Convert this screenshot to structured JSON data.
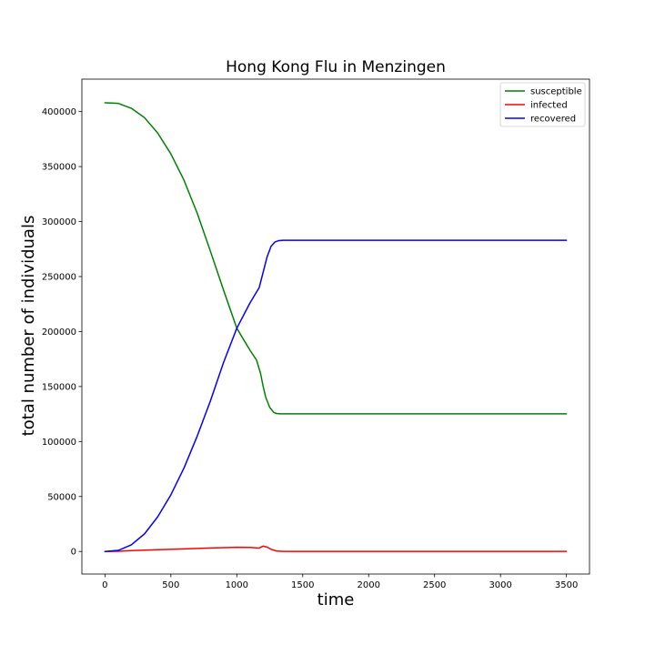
{
  "chart_data": {
    "type": "line",
    "title": "Hong Kong Flu in Menzingen",
    "xlabel": "time",
    "ylabel": "total number of individuals",
    "xlim": [
      -175,
      3675
    ],
    "ylim": [
      -20500,
      429500
    ],
    "xticks": [
      0,
      500,
      1000,
      1500,
      2000,
      2500,
      3000,
      3500
    ],
    "yticks": [
      0,
      50000,
      100000,
      150000,
      200000,
      250000,
      300000,
      350000,
      400000
    ],
    "grid": false,
    "legend_position": "top-right",
    "series": [
      {
        "name": "susceptible",
        "color": "#008000",
        "x": [
          0,
          100,
          200,
          300,
          400,
          500,
          600,
          700,
          800,
          900,
          1000,
          1100,
          1150,
          1180,
          1200,
          1220,
          1250,
          1280,
          1300,
          1330,
          1400,
          1600,
          2000,
          2500,
          3000,
          3500
        ],
        "y": [
          408000,
          407500,
          403000,
          394500,
          380500,
          361500,
          337500,
          307500,
          273000,
          237500,
          203000,
          183000,
          174000,
          162000,
          150000,
          140000,
          131000,
          126500,
          125500,
          125200,
          125200,
          125200,
          125200,
          125200,
          125200,
          125200
        ]
      },
      {
        "name": "infected",
        "color": "#ff0000",
        "x": [
          0,
          100,
          200,
          400,
          600,
          800,
          1000,
          1100,
          1170,
          1200,
          1230,
          1260,
          1300,
          1350,
          1500,
          2000,
          2500,
          3000,
          3500
        ],
        "y": [
          0,
          200,
          800,
          1600,
          2400,
          3200,
          3800,
          3700,
          3100,
          4900,
          4000,
          2000,
          500,
          100,
          50,
          50,
          50,
          50,
          50
        ]
      },
      {
        "name": "recovered",
        "color": "#0000ff",
        "x": [
          0,
          100,
          200,
          300,
          400,
          500,
          600,
          700,
          800,
          900,
          1000,
          1100,
          1170,
          1200,
          1230,
          1260,
          1290,
          1320,
          1350,
          1400,
          1500,
          2000,
          2500,
          3000,
          3500
        ],
        "y": [
          0,
          1000,
          6000,
          16000,
          31500,
          51500,
          76000,
          105000,
          137000,
          172000,
          203000,
          226000,
          240000,
          254000,
          268000,
          277500,
          281500,
          282700,
          283000,
          283000,
          283000,
          283000,
          283000,
          283000,
          283000
        ]
      }
    ]
  }
}
